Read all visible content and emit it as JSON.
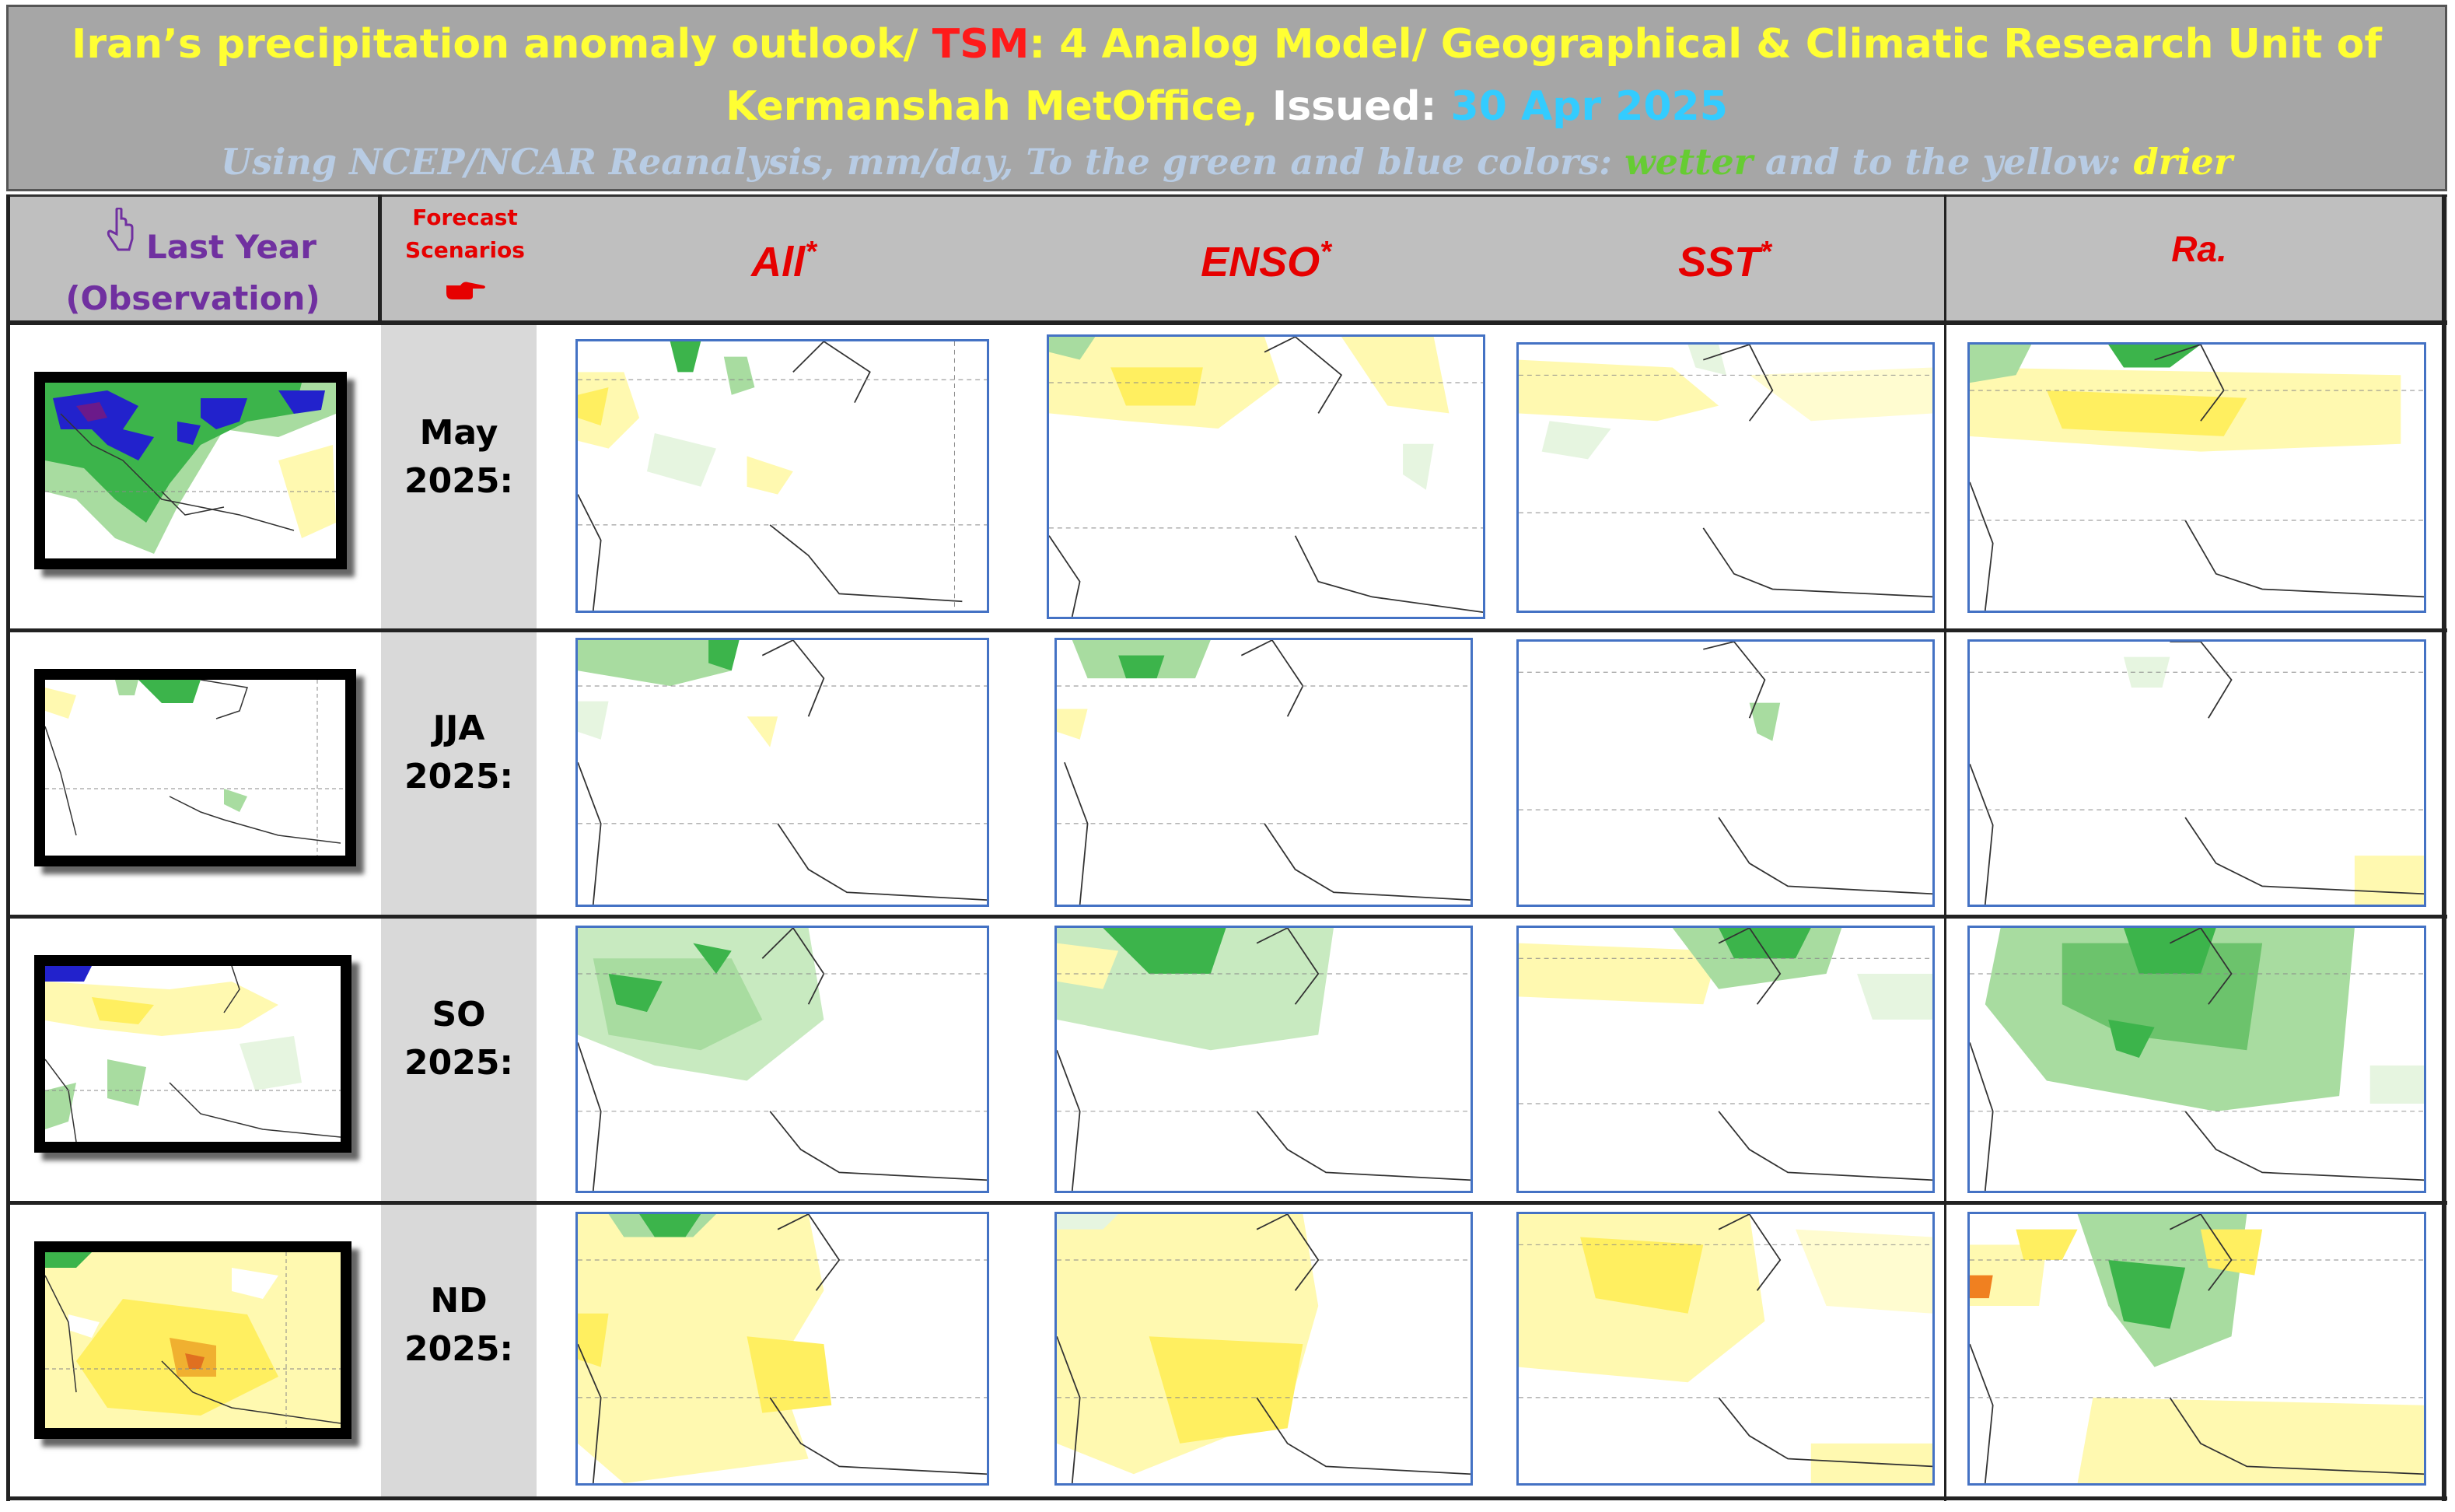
{
  "header": {
    "line1_a": "Iran’s precipitation anomaly outlook/ ",
    "line1_b": "TSM",
    "line1_c": ": 4 Analog Model/ Geographical & Climatic Research Unit of",
    "line2_a": "Kermanshah MetOffice,",
    "line2_b": " Issued: ",
    "line2_c": "30 Apr 2025",
    "line3_a": "Using NCEP/NCAR Reanalysis, mm/day, To the green and blue colors: ",
    "line3_b": "wetter",
    "line3_c": " and to the yellow: ",
    "line3_d": "drier"
  },
  "columns": {
    "last_year_line1": "Last Year",
    "last_year_line2": "(Observation)",
    "forecast_line1": "Forecast",
    "forecast_line2": "Scenarios",
    "all": "All",
    "enso": "ENSO",
    "sst": "SST",
    "ra": "Ra.",
    "asterisk": "*"
  },
  "rows": [
    {
      "period": "May",
      "year": "2025:"
    },
    {
      "period": "JJA",
      "year": "2025:"
    },
    {
      "period": "SO",
      "year": "2025:"
    },
    {
      "period": "ND",
      "year": "2025:"
    }
  ],
  "icons": {
    "pointing_hand": "hand-pointing-down-icon",
    "pointing_hand_right": "hand-pointing-right-icon"
  },
  "colors": {
    "header_bg": "#a6a6a6",
    "title_yellow": "#ffff33",
    "accent_red": "#ff1a1a",
    "issued_date": "#33ccff",
    "wetter": "#66cc33",
    "drier": "#ffff33",
    "wet_blue": "#2020cc",
    "panel_border": "#4472c4"
  }
}
